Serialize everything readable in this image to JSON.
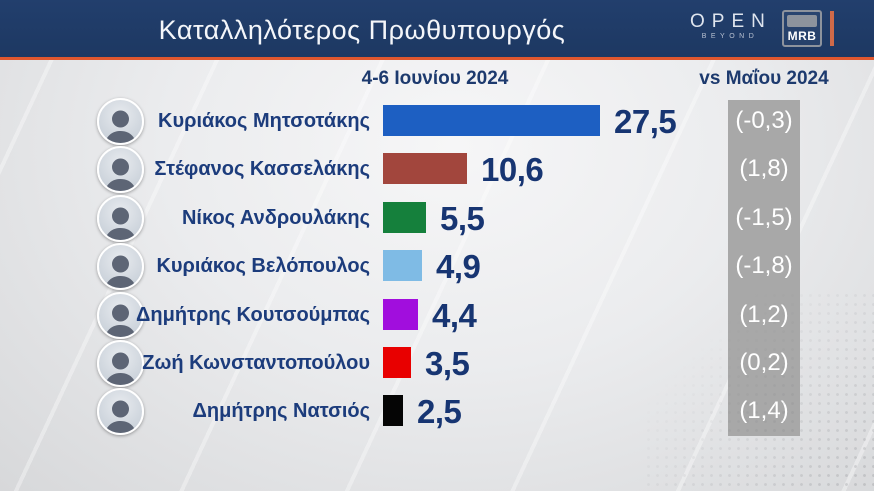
{
  "header": {
    "title": "Καταλληλότερος Πρωθυπουργός",
    "open_logo": {
      "line1": "OPEN",
      "line2": "BEYOND"
    },
    "mrb_logo": "MRB"
  },
  "subtitle": {
    "period": "4-6 Ιουνίου 2024",
    "comparison": "vs Μαΐου 2024"
  },
  "colors": {
    "header_navy": "#1f3b68",
    "accent_orange": "#e0572e",
    "text_navy": "#1c3c7c",
    "value_navy": "#173572",
    "gray_column": "#a8a8a8",
    "background_gray": "#e6e7e9"
  },
  "chart_data": {
    "type": "bar",
    "title": "Καταλληλότερος Πρωθυπουργός",
    "xlabel": "",
    "ylabel": "",
    "unit": "percent",
    "xlim": [
      0,
      30
    ],
    "grid": false,
    "legend_position": "none",
    "categories": [
      "Κυριάκος Μητσοτάκης",
      "Στέφανος Κασσελάκης",
      "Νίκος Ανδρουλάκης",
      "Κυριάκος Βελόπουλος",
      "Δημήτρης Κουτσούμπας",
      "Ζωή Κωνσταντοπούλου",
      "Δημήτρης Νατσιός"
    ],
    "values": [
      27.5,
      10.6,
      5.5,
      4.9,
      4.4,
      3.5,
      2.5
    ],
    "changes": [
      -0.3,
      1.8,
      -1.5,
      -1.8,
      1.2,
      0.2,
      1.4
    ],
    "rows": [
      {
        "name": "Κυριάκος Μητσοτάκης",
        "value": 27.5,
        "value_label": "27,5",
        "change": -0.3,
        "change_label": "(-0,3)",
        "color": "#1d5fc2"
      },
      {
        "name": "Στέφανος Κασσελάκης",
        "value": 10.6,
        "value_label": "10,6",
        "change": 1.8,
        "change_label": "(1,8)",
        "color": "#a2463d"
      },
      {
        "name": "Νίκος Ανδρουλάκης",
        "value": 5.5,
        "value_label": "5,5",
        "change": -1.5,
        "change_label": "(-1,5)",
        "color": "#15803c"
      },
      {
        "name": "Κυριάκος Βελόπουλος",
        "value": 4.9,
        "value_label": "4,9",
        "change": -1.8,
        "change_label": "(-1,8)",
        "color": "#7fbbe5"
      },
      {
        "name": "Δημήτρης Κουτσούμπας",
        "value": 4.4,
        "value_label": "4,4",
        "change": 1.2,
        "change_label": "(1,2)",
        "color": "#a10edd"
      },
      {
        "name": "Ζωή Κωνσταντοπούλου",
        "value": 3.5,
        "value_label": "3,5",
        "change": 0.2,
        "change_label": "(0,2)",
        "color": "#e80000"
      },
      {
        "name": "Δημήτρης Νατσιός",
        "value": 2.5,
        "value_label": "2,5",
        "change": 1.4,
        "change_label": "(1,4)",
        "color": "#050505"
      }
    ]
  }
}
